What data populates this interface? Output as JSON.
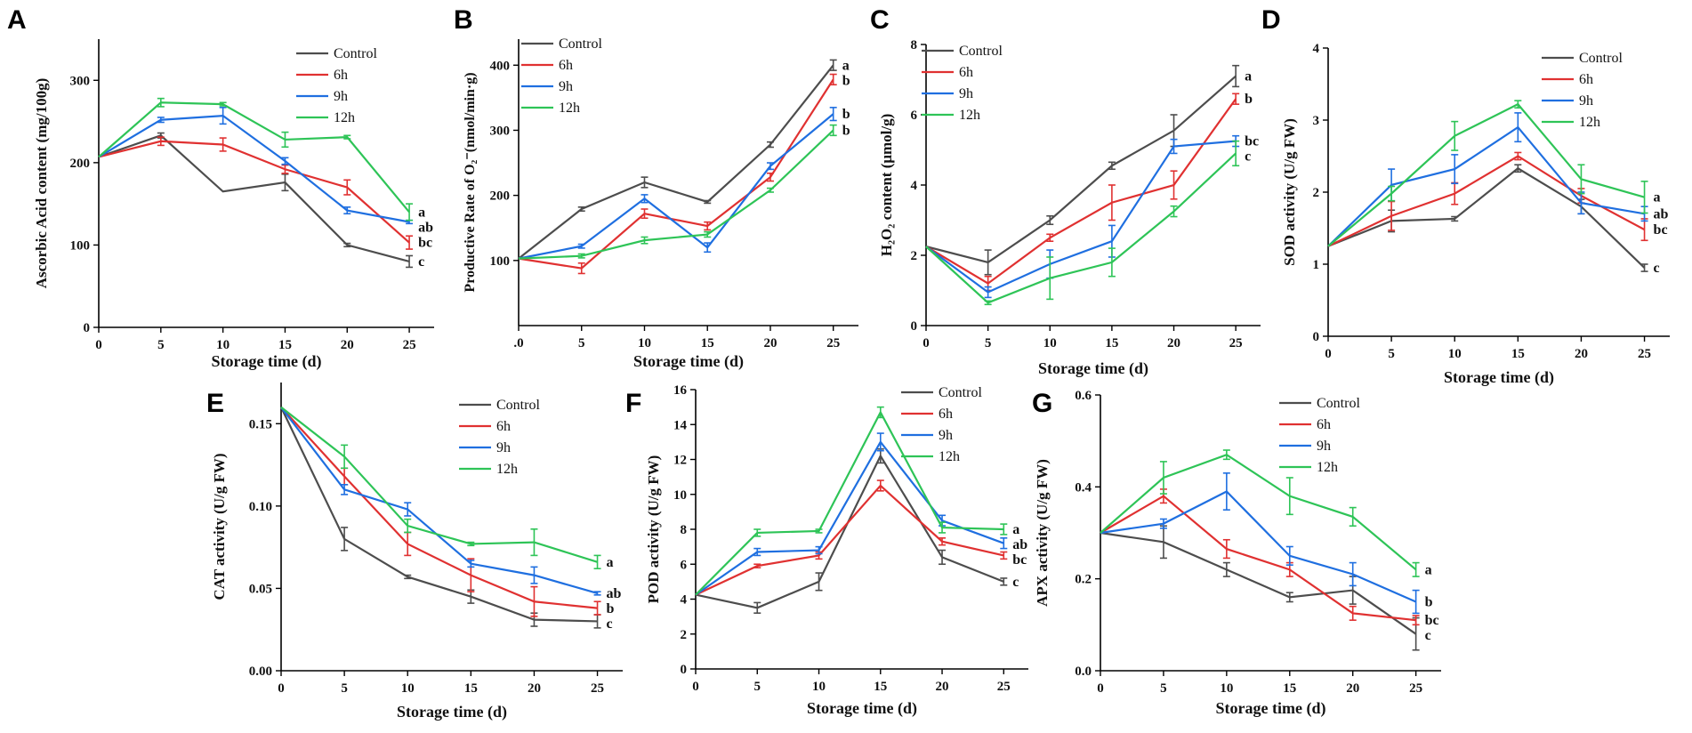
{
  "colors": {
    "Control": "#4d4d4d",
    "6h": "#e03131",
    "9h": "#1f6fe0",
    "12h": "#2ec457"
  },
  "chart_data": [
    {
      "panel": "A",
      "type": "line",
      "ylabel": "Ascorbic Acid content (mg/100g)",
      "xlabel": "Storage time (d)",
      "x": [
        0,
        5,
        10,
        15,
        20,
        25
      ],
      "xlim": [
        0,
        27
      ],
      "xticks": [
        0,
        5,
        10,
        15,
        20,
        25
      ],
      "ylim": [
        0,
        350
      ],
      "yticks": [
        0,
        100,
        200,
        300
      ],
      "series": [
        {
          "name": "Control",
          "values": [
            207,
            233,
            165,
            176,
            100,
            80
          ],
          "err": [
            0,
            3,
            0,
            10,
            2,
            7
          ]
        },
        {
          "name": "6h",
          "values": [
            207,
            226,
            222,
            192,
            170,
            103
          ],
          "err": [
            0,
            5,
            8,
            5,
            9,
            8
          ]
        },
        {
          "name": "9h",
          "values": [
            207,
            252,
            257,
            202,
            142,
            128
          ],
          "err": [
            0,
            3,
            10,
            4,
            4,
            2
          ]
        },
        {
          "name": "12h",
          "values": [
            207,
            273,
            271,
            228,
            231,
            140
          ],
          "err": [
            0,
            5,
            2,
            9,
            2,
            10
          ]
        }
      ],
      "sig_labels": [
        "a",
        "ab",
        "bc",
        "c"
      ]
    },
    {
      "panel": "B",
      "type": "line",
      "ylabel": "Productive Rate of O₂⁻(nmol/min·g)",
      "xlabel": "Storage time (d)",
      "x": [
        0,
        5,
        10,
        15,
        20,
        25
      ],
      "xlim": [
        0,
        27
      ],
      "xticks": [
        ".0",
        "5",
        "10",
        "15",
        "20",
        "25"
      ],
      "ylim": [
        0,
        440
      ],
      "yticks": [
        100,
        200,
        300,
        400
      ],
      "series": [
        {
          "name": "Control",
          "values": [
            103,
            179,
            220,
            190,
            278,
            400
          ],
          "err": [
            0,
            3,
            8,
            2,
            4,
            8
          ]
        },
        {
          "name": "6h",
          "values": [
            103,
            88,
            172,
            153,
            228,
            378
          ],
          "err": [
            0,
            8,
            7,
            6,
            6,
            8
          ]
        },
        {
          "name": "9h",
          "values": [
            103,
            122,
            195,
            120,
            245,
            325
          ],
          "err": [
            0,
            3,
            6,
            7,
            5,
            10
          ]
        },
        {
          "name": "12h",
          "values": [
            103,
            107,
            131,
            140,
            208,
            300
          ],
          "err": [
            0,
            3,
            5,
            4,
            3,
            8
          ]
        }
      ],
      "sig_labels": [
        "a",
        "b",
        "b",
        "b"
      ]
    },
    {
      "panel": "C",
      "type": "line",
      "ylabel": "H₂O₂ content (μmol/g)",
      "xlabel": "Storage time (d)",
      "x": [
        0,
        5,
        10,
        15,
        20,
        25
      ],
      "xlim": [
        0,
        27
      ],
      "xticks": [
        0,
        5,
        10,
        15,
        20,
        25
      ],
      "ylim": [
        0,
        8
      ],
      "yticks": [
        0,
        2,
        4,
        6,
        8
      ],
      "series": [
        {
          "name": "Control",
          "values": [
            2.25,
            1.8,
            3.0,
            4.55,
            5.55,
            7.1
          ],
          "err": [
            0,
            0.35,
            0.12,
            0.1,
            0.45,
            0.3
          ]
        },
        {
          "name": "6h",
          "values": [
            2.25,
            1.2,
            2.5,
            3.5,
            4.0,
            6.45
          ],
          "err": [
            0,
            0.2,
            0.1,
            0.5,
            0.4,
            0.15
          ]
        },
        {
          "name": "9h",
          "values": [
            2.25,
            0.95,
            1.75,
            2.4,
            5.1,
            5.25
          ],
          "err": [
            0,
            0.15,
            0.4,
            0.45,
            0.2,
            0.15
          ]
        },
        {
          "name": "12h",
          "values": [
            2.25,
            0.65,
            1.35,
            1.8,
            3.25,
            4.9
          ],
          "err": [
            0,
            0.05,
            0.6,
            0.4,
            0.15,
            0.35
          ]
        }
      ],
      "sig_labels": [
        "a",
        "b",
        "bc",
        "c"
      ]
    },
    {
      "panel": "D",
      "type": "line",
      "ylabel": "SOD activity (U/g FW)",
      "xlabel": "Storage time (d)",
      "x": [
        0,
        5,
        10,
        15,
        20,
        25
      ],
      "xlim": [
        0,
        27
      ],
      "xticks": [
        0,
        5,
        10,
        15,
        20,
        25
      ],
      "ylim": [
        0,
        4
      ],
      "yticks": [
        0,
        1,
        2,
        3,
        4
      ],
      "series": [
        {
          "name": "Control",
          "values": [
            1.25,
            1.6,
            1.63,
            2.33,
            1.8,
            0.95
          ],
          "err": [
            0,
            0.15,
            0.03,
            0.05,
            0.1,
            0.05
          ]
        },
        {
          "name": "6h",
          "values": [
            1.25,
            1.67,
            1.98,
            2.5,
            1.95,
            1.48
          ],
          "err": [
            0,
            0.2,
            0.15,
            0.05,
            0.1,
            0.15
          ]
        },
        {
          "name": "9h",
          "values": [
            1.25,
            2.1,
            2.32,
            2.9,
            1.85,
            1.7
          ],
          "err": [
            0,
            0.22,
            0.2,
            0.2,
            0.15,
            0.1
          ]
        },
        {
          "name": "12h",
          "values": [
            1.25,
            1.98,
            2.78,
            3.22,
            2.18,
            1.93
          ],
          "err": [
            0,
            0.1,
            0.2,
            0.05,
            0.2,
            0.22
          ]
        }
      ],
      "sig_labels": [
        "a",
        "ab",
        "bc",
        "c"
      ]
    },
    {
      "panel": "E",
      "type": "line",
      "ylabel": "CAT activity (U/g FW)",
      "xlabel": "Storage time (d)",
      "x": [
        0,
        5,
        10,
        15,
        20,
        25
      ],
      "xlim": [
        0,
        27
      ],
      "xticks": [
        0,
        5,
        10,
        15,
        20,
        25
      ],
      "ylim": [
        0,
        0.175
      ],
      "yticks": [
        "0.00",
        "0.05",
        "0.10",
        "0.15"
      ],
      "yticks_values": [
        0,
        0.05,
        0.1,
        0.15
      ],
      "series": [
        {
          "name": "Control",
          "values": [
            0.16,
            0.08,
            0.057,
            0.045,
            0.031,
            0.03
          ],
          "err": [
            0,
            0.007,
            0.001,
            0.004,
            0.004,
            0.004
          ]
        },
        {
          "name": "6h",
          "values": [
            0.16,
            0.118,
            0.077,
            0.058,
            0.042,
            0.038
          ],
          "err": [
            0,
            0.005,
            0.007,
            0.01,
            0.009,
            0.004
          ]
        },
        {
          "name": "9h",
          "values": [
            0.16,
            0.11,
            0.098,
            0.065,
            0.058,
            0.047
          ],
          "err": [
            0,
            0.003,
            0.004,
            0.002,
            0.005,
            0.001
          ]
        },
        {
          "name": "12h",
          "values": [
            0.16,
            0.13,
            0.088,
            0.077,
            0.078,
            0.066
          ],
          "err": [
            0,
            0.007,
            0.004,
            0.001,
            0.008,
            0.004
          ]
        }
      ],
      "sig_labels": [
        "a",
        "ab",
        "b",
        "c"
      ]
    },
    {
      "panel": "F",
      "type": "line",
      "ylabel": "POD activity (U/g FW)",
      "xlabel": "Storage time (d)",
      "x": [
        0,
        5,
        10,
        15,
        20,
        25
      ],
      "xlim": [
        0,
        27
      ],
      "xticks": [
        0,
        5,
        10,
        15,
        20,
        25
      ],
      "ylim": [
        0,
        16
      ],
      "yticks": [
        0,
        2,
        4,
        6,
        8,
        10,
        12,
        14,
        16
      ],
      "series": [
        {
          "name": "Control",
          "values": [
            4.25,
            3.5,
            5.0,
            12.2,
            6.4,
            5.0
          ],
          "err": [
            0,
            0.3,
            0.5,
            0.4,
            0.4,
            0.2
          ]
        },
        {
          "name": "6h",
          "values": [
            4.25,
            5.9,
            6.5,
            10.5,
            7.3,
            6.5
          ],
          "err": [
            0,
            0.1,
            0.2,
            0.3,
            0.2,
            0.2
          ]
        },
        {
          "name": "9h",
          "values": [
            4.25,
            6.7,
            6.8,
            13.0,
            8.5,
            7.2
          ],
          "err": [
            0,
            0.2,
            0.2,
            0.5,
            0.3,
            0.3
          ]
        },
        {
          "name": "12h",
          "values": [
            4.25,
            7.8,
            7.9,
            14.7,
            8.1,
            8.0
          ],
          "err": [
            0,
            0.2,
            0.1,
            0.3,
            0.3,
            0.3
          ]
        }
      ],
      "sig_labels": [
        "a",
        "ab",
        "bc",
        "c"
      ]
    },
    {
      "panel": "G",
      "type": "line",
      "ylabel": "APX activity (U/g FW)",
      "xlabel": "Storage time (d)",
      "x": [
        0,
        5,
        10,
        15,
        20,
        25
      ],
      "xlim": [
        0,
        27
      ],
      "xticks": [
        0,
        5,
        10,
        15,
        20,
        25
      ],
      "ylim": [
        0,
        0.6
      ],
      "yticks": [
        "0.0",
        "0.2",
        "0.4",
        "0.6"
      ],
      "yticks_values": [
        0,
        0.2,
        0.4,
        0.6
      ],
      "series": [
        {
          "name": "Control",
          "values": [
            0.3,
            0.28,
            0.22,
            0.16,
            0.175,
            0.08
          ],
          "err": [
            0,
            0.035,
            0.015,
            0.01,
            0.03,
            0.035
          ]
        },
        {
          "name": "6h",
          "values": [
            0.3,
            0.38,
            0.265,
            0.22,
            0.125,
            0.11
          ],
          "err": [
            0,
            0.015,
            0.02,
            0.015,
            0.015,
            0.01
          ]
        },
        {
          "name": "9h",
          "values": [
            0.3,
            0.32,
            0.39,
            0.25,
            0.21,
            0.15
          ],
          "err": [
            0,
            0.01,
            0.04,
            0.02,
            0.025,
            0.025
          ]
        },
        {
          "name": "12h",
          "values": [
            0.3,
            0.42,
            0.47,
            0.38,
            0.335,
            0.22
          ],
          "err": [
            0,
            0.035,
            0.01,
            0.04,
            0.02,
            0.015
          ]
        }
      ],
      "sig_labels": [
        "a",
        "b",
        "bc",
        "c"
      ]
    }
  ]
}
